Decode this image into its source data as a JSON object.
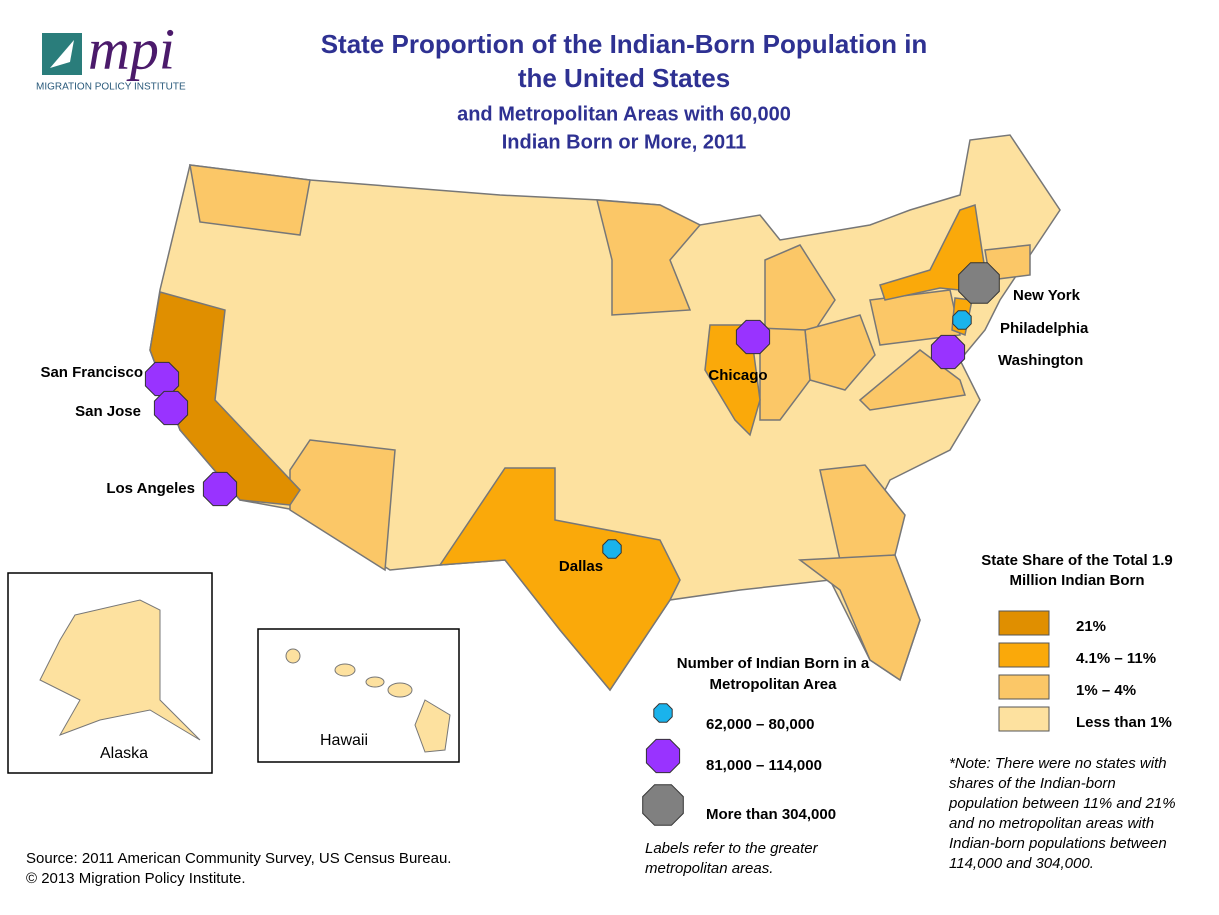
{
  "logo": {
    "mark": "mpi",
    "name": "MIGRATION POLICY INSTITUTE"
  },
  "title": [
    "State Proportion of the Indian-Born Population in",
    "the United States"
  ],
  "subtitle": [
    "and Metropolitan Areas with 60,000",
    "Indian Born or More, 2011"
  ],
  "metros": [
    {
      "name": "New York",
      "size": 2
    },
    {
      "name": "Philadelphia",
      "size": 0
    },
    {
      "name": "Washington",
      "size": 1
    },
    {
      "name": "Chicago",
      "size": 1
    },
    {
      "name": "San Francisco",
      "size": 1
    },
    {
      "name": "San Jose",
      "size": 1
    },
    {
      "name": "Los Angeles",
      "size": 1
    },
    {
      "name": "Dallas",
      "size": 0
    }
  ],
  "insets": [
    "Alaska",
    "Hawaii"
  ],
  "metro_legend": {
    "title": [
      "Number of Indian Born in a",
      "Metropolitan Area"
    ],
    "items": [
      {
        "label": "62,000 – 80,000",
        "color": "#1ab3ec"
      },
      {
        "label": "81,000 – 114,000",
        "color": "#9933ff"
      },
      {
        "label": "More than 304,000",
        "color": "#808080"
      }
    ],
    "note": [
      "Labels refer to the greater",
      "metropolitan areas."
    ]
  },
  "share_legend": {
    "title": [
      "State Share of the Total 1.9",
      "Million Indian Born"
    ],
    "items": [
      {
        "label": "21%",
        "color": "#e08f00"
      },
      {
        "label": "4.1% – 11%",
        "color": "#faa90a"
      },
      {
        "label": "1% – 4%",
        "color": "#fbc767"
      },
      {
        "label": "Less than 1%",
        "color": "#fde19f"
      }
    ]
  },
  "note": [
    "*Note: There were no states with",
    "shares of the Indian-born",
    "population between 11% and 21%",
    "and no metropolitan areas with",
    "Indian-born populations between",
    "114,000 and 304,000."
  ],
  "source": [
    "Source: 2011 American Community Survey, US Census Bureau.",
    "© 2013 Migration Policy Institute."
  ]
}
